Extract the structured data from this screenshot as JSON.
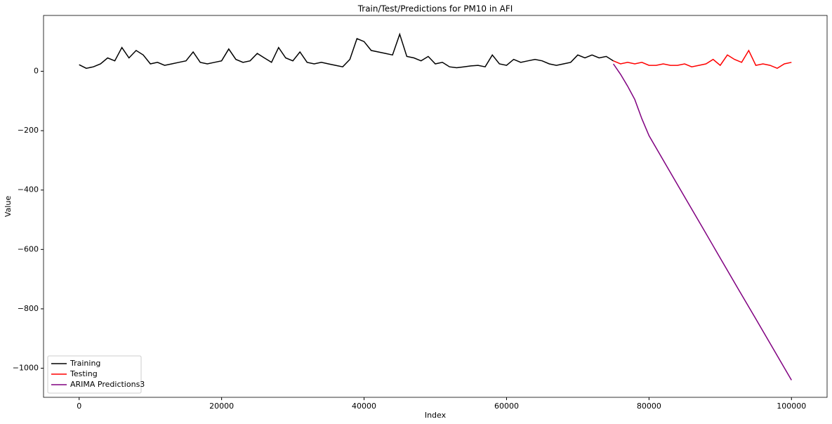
{
  "chart_data": {
    "type": "line",
    "title": "Train/Test/Predictions for PM10 in AFI",
    "x_label": "Index",
    "y_label": "Value",
    "xlim": [
      -5000,
      105000
    ],
    "xticks": [
      0,
      20000,
      40000,
      60000,
      80000,
      100000
    ],
    "ylim": [
      -1098,
      188
    ],
    "yticks": [
      {
        "value": -1000,
        "label": "−1000"
      },
      {
        "value": -800,
        "label": "−800"
      },
      {
        "value": -600,
        "label": "−600"
      },
      {
        "value": -400,
        "label": "−400"
      },
      {
        "value": -200,
        "label": "−200"
      },
      0
    ],
    "legend": "lower left",
    "series": [
      {
        "name": "Training",
        "color": "#000000",
        "x": [
          0,
          1000,
          2000,
          3000,
          4000,
          5000,
          6000,
          7000,
          8000,
          9000,
          10000,
          11000,
          12000,
          13000,
          14000,
          15000,
          16000,
          17000,
          18000,
          19000,
          20000,
          21000,
          22000,
          23000,
          24000,
          25000,
          26000,
          27000,
          28000,
          29000,
          30000,
          31000,
          32000,
          33000,
          34000,
          35000,
          36000,
          37000,
          38000,
          39000,
          40000,
          41000,
          42000,
          43000,
          44000,
          45000,
          46000,
          47000,
          48000,
          49000,
          50000,
          51000,
          52000,
          53000,
          54000,
          55000,
          56000,
          57000,
          58000,
          59000,
          60000,
          61000,
          62000,
          63000,
          64000,
          65000,
          66000,
          67000,
          68000,
          69000,
          70000,
          71000,
          72000,
          73000,
          74000,
          75000
        ],
        "values": [
          22,
          10,
          15,
          25,
          45,
          35,
          80,
          45,
          70,
          55,
          25,
          30,
          20,
          25,
          30,
          35,
          65,
          30,
          25,
          30,
          35,
          75,
          40,
          30,
          35,
          60,
          45,
          30,
          80,
          45,
          35,
          65,
          30,
          25,
          30,
          25,
          20,
          15,
          40,
          110,
          100,
          70,
          65,
          60,
          55,
          125,
          50,
          45,
          35,
          50,
          25,
          30,
          15,
          12,
          15,
          18,
          20,
          15,
          55,
          25,
          20,
          40,
          30,
          35,
          40,
          35,
          25,
          20,
          25,
          30,
          55,
          45,
          55,
          45,
          50,
          35
        ]
      },
      {
        "name": "Testing",
        "color": "#ff0000",
        "x": [
          75000,
          76000,
          77000,
          78000,
          79000,
          80000,
          81000,
          82000,
          83000,
          84000,
          85000,
          86000,
          87000,
          88000,
          89000,
          90000,
          91000,
          92000,
          93000,
          94000,
          95000,
          96000,
          97000,
          98000,
          99000,
          100000
        ],
        "values": [
          35,
          25,
          30,
          25,
          30,
          20,
          20,
          25,
          20,
          20,
          25,
          15,
          20,
          25,
          40,
          20,
          55,
          40,
          30,
          70,
          20,
          25,
          20,
          10,
          25,
          30
        ]
      },
      {
        "name": "ARIMA Predictions3",
        "color": "#800080",
        "x": [
          75000,
          76000,
          77000,
          78000,
          79000,
          80000,
          82500,
          85000,
          87500,
          90000,
          92500,
          95000,
          97500,
          100000
        ],
        "values": [
          25,
          -10,
          -50,
          -95,
          -160,
          -217,
          -320,
          -423,
          -526,
          -629,
          -732,
          -834,
          -937,
          -1040
        ]
      }
    ]
  }
}
